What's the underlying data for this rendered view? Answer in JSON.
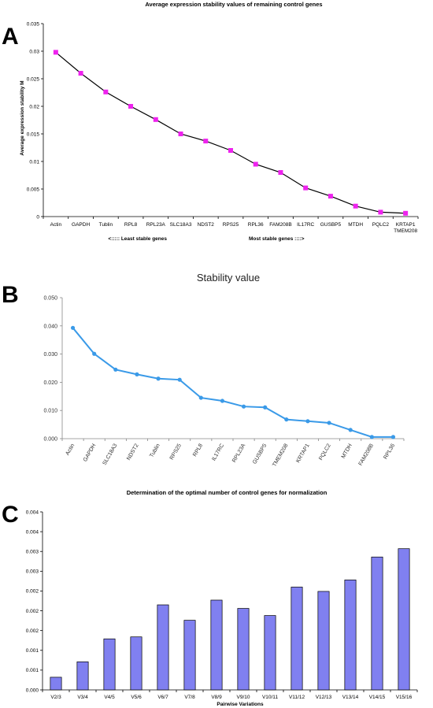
{
  "chart_data": [
    {
      "panel": "A",
      "type": "line",
      "title": "Average expression stability values of remaining control genes",
      "ylabel": "Average expression stability M",
      "ylim": [
        0,
        0.035
      ],
      "yticks": [
        "0",
        "0.005",
        "0.01",
        "0.015",
        "0.02",
        "0.025",
        "0.03",
        "0.035"
      ],
      "categories": [
        "Actin",
        "GAPDH",
        "Tublin",
        "RPL8",
        "RPL23A",
        "SLC18A3",
        "NDST2",
        "RPS25",
        "RPL36",
        "FAM208B",
        "IL17RC",
        "GUSBP5",
        "MTDH",
        "PQLC2",
        "KRTAP1 TMEM208"
      ],
      "values": [
        0.0298,
        0.026,
        0.0226,
        0.02,
        0.0176,
        0.015,
        0.0137,
        0.012,
        0.0095,
        0.008,
        0.0052,
        0.0037,
        0.0019,
        0.0008,
        0.0006
      ],
      "annotation_left": "<::::: Least stable genes",
      "annotation_right": "Most stable genes ::::>",
      "line_color": "#000000",
      "marker_color": "#ee22ee",
      "grid": false
    },
    {
      "panel": "B",
      "type": "line",
      "title": "Stability value",
      "ylim": [
        0,
        0.05
      ],
      "yticks": [
        "0.000",
        "0.010",
        "0.020",
        "0.030",
        "0.040",
        "0.050"
      ],
      "categories": [
        "Actin",
        "GAPDH",
        "SLC18A3",
        "NDST2",
        "Tublin",
        "RPS25",
        "RPL8",
        "IL17RC",
        "RPL23A",
        "GUSBP5",
        "TMEM208",
        "KRTAP1",
        "PQLC2",
        "MTDH",
        "FAM208B",
        "RPL36"
      ],
      "values": [
        0.0393,
        0.0301,
        0.0245,
        0.0228,
        0.0213,
        0.0209,
        0.0145,
        0.0134,
        0.0114,
        0.0111,
        0.0068,
        0.0062,
        0.0056,
        0.0031,
        0.0006,
        0.0006
      ],
      "line_color": "#3a9ae8",
      "grid": false
    },
    {
      "panel": "C",
      "type": "bar",
      "title": "Determination of the optimal number of control genes for normalization",
      "xlabel": "Pairwise Variations",
      "ylim": [
        0,
        0.0045
      ],
      "yticks": [
        "0.000",
        "0.001",
        "0.001",
        "0.002",
        "0.002",
        "0.002",
        "0.003",
        "0.003",
        "0.004",
        "0.004"
      ],
      "categories": [
        "V2/3",
        "V3/4",
        "V4/5",
        "V5/6",
        "V6/7",
        "V7/8",
        "V8/9",
        "V9/10",
        "V10/11",
        "V11/12",
        "V12/13",
        "V13/14",
        "V14/15",
        "V15/16"
      ],
      "values": [
        0.00032,
        0.00071,
        0.00129,
        0.00134,
        0.00215,
        0.00176,
        0.00227,
        0.00206,
        0.00188,
        0.0026,
        0.00249,
        0.00278,
        0.00336,
        0.00357
      ],
      "bar_color": "#8080f0",
      "grid": false
    }
  ]
}
